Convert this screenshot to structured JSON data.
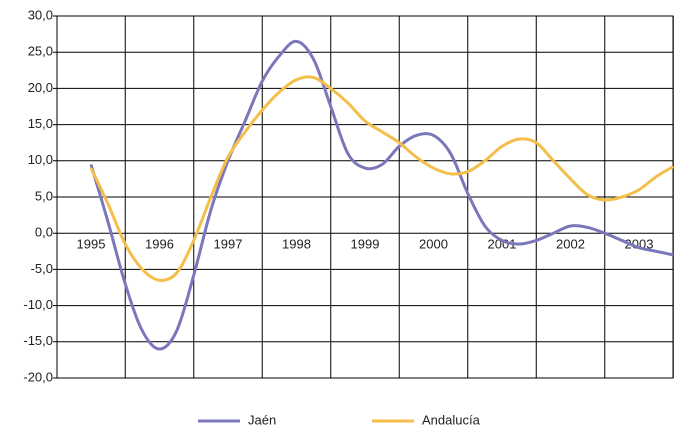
{
  "chart_data": {
    "type": "line",
    "categories": [
      "1995",
      null,
      null,
      null,
      "1996",
      null,
      null,
      null,
      "1997",
      null,
      null,
      null,
      "1998",
      null,
      null,
      null,
      "1999",
      null,
      null,
      null,
      "2000",
      null,
      null,
      null,
      "2001",
      null,
      null,
      null,
      "2002",
      null,
      null,
      null,
      "2003",
      null,
      null
    ],
    "series": [
      {
        "name": "Jaén",
        "color": "#7b77bb",
        "values": [
          9.5,
          1.5,
          -7,
          -13.5,
          -16,
          -13.5,
          -5.8,
          3.2,
          10,
          15.5,
          21,
          24.5,
          26.5,
          24,
          17.5,
          11,
          9,
          9.5,
          12,
          13.5,
          13.5,
          11,
          5.5,
          1,
          -1,
          -1.5,
          -1,
          0,
          1,
          0.8,
          0,
          -1,
          -2,
          -2.5,
          -3
        ]
      },
      {
        "name": "Andalucía",
        "color": "#f5be4a",
        "values": [
          9,
          4,
          -1.5,
          -5,
          -6.5,
          -5.5,
          -1,
          5,
          10.5,
          14,
          17,
          19.5,
          21.2,
          21.5,
          20,
          18,
          15.5,
          14,
          12.5,
          10.5,
          9,
          8.2,
          8.5,
          10,
          12,
          13,
          12.5,
          10,
          7.5,
          5.3,
          4.6,
          5,
          6,
          7.8,
          9.2
        ]
      }
    ],
    "ylim": [
      -20,
      30
    ],
    "yticks": [
      {
        "value": -20,
        "label": "-20,0"
      },
      {
        "value": -15,
        "label": "-15,0"
      },
      {
        "value": -10,
        "label": "-10,0"
      },
      {
        "value": -5,
        "label": "-5,0"
      },
      {
        "value": 0,
        "label": "0,0"
      },
      {
        "value": 5,
        "label": "5,0"
      },
      {
        "value": 10,
        "label": "10,0"
      },
      {
        "value": 15,
        "label": "15,0"
      },
      {
        "value": 20,
        "label": "20,0"
      },
      {
        "value": 25,
        "label": "25,0"
      },
      {
        "value": 30,
        "label": "30,0"
      }
    ],
    "grid": true,
    "legend": "bottom"
  }
}
